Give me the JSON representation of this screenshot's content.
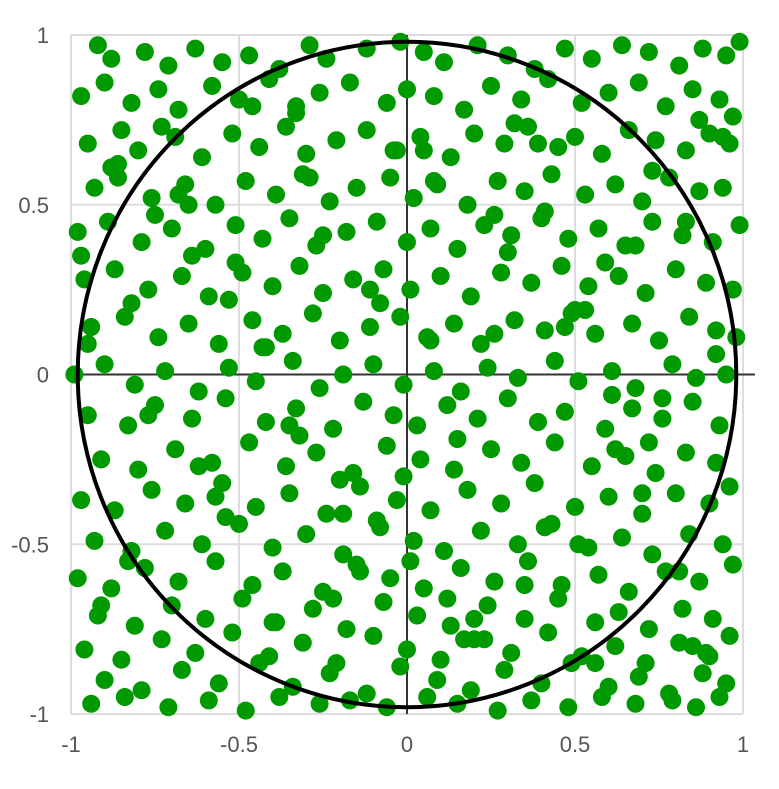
{
  "chart_data": {
    "type": "scatter",
    "title": "",
    "xlabel": "",
    "ylabel": "",
    "xlim": [
      -1,
      1
    ],
    "ylim": [
      -1,
      1
    ],
    "x_ticks": [
      -1,
      -0.5,
      0,
      0.5,
      1
    ],
    "y_ticks": [
      -1,
      -0.5,
      0,
      0.5,
      1
    ],
    "x_tick_labels": [
      "-1",
      "-0.5",
      "0",
      "0.5",
      "1"
    ],
    "y_tick_labels": [
      "-1",
      "-0.5",
      "0",
      "0.5",
      "1"
    ],
    "grid": true,
    "legend": "none",
    "point_color": "#009900",
    "gridline_color": "#dddddd",
    "axis_color": "#333333",
    "circle": {
      "cx": 0,
      "cy": 0,
      "r": 0.98,
      "color": "#000000"
    },
    "series": [
      {
        "x": [
          -0.92,
          -0.88,
          -0.78,
          -0.71,
          -0.63,
          -0.55,
          -0.47,
          -0.38,
          -0.29,
          -0.24,
          -0.12,
          -0.02,
          0.05,
          0.11,
          0.21,
          0.3,
          0.38,
          0.47,
          0.55,
          0.64,
          0.72,
          0.81,
          0.88,
          0.95,
          0.99,
          -0.97,
          -0.9,
          -0.82,
          -0.74,
          -0.68,
          -0.58,
          -0.5,
          -0.41,
          -0.33,
          -0.26,
          -0.17,
          -0.06,
          0.0,
          0.08,
          0.17,
          0.25,
          0.34,
          0.42,
          0.52,
          0.6,
          0.69,
          0.77,
          0.85,
          0.93,
          0.97,
          -0.95,
          -0.85,
          -0.8,
          -0.69,
          -0.61,
          -0.52,
          -0.44,
          -0.36,
          -0.3,
          -0.21,
          -0.12,
          -0.03,
          0.04,
          0.13,
          0.2,
          0.29,
          0.36,
          0.45,
          0.5,
          0.58,
          0.66,
          0.74,
          0.83,
          0.9,
          0.96,
          -0.93,
          -0.86,
          -0.76,
          -0.66,
          -0.57,
          -0.48,
          -0.39,
          -0.31,
          -0.23,
          -0.15,
          -0.05,
          0.02,
          0.09,
          0.18,
          0.27,
          0.35,
          0.43,
          0.53,
          0.62,
          0.7,
          0.78,
          0.87,
          0.94,
          -0.98,
          -0.89,
          -0.79,
          -0.7,
          -0.6,
          -0.51,
          -0.43,
          -0.35,
          -0.27,
          -0.18,
          -0.09,
          0.0,
          0.07,
          0.15,
          0.23,
          0.31,
          0.4,
          0.48,
          0.57,
          0.65,
          0.73,
          0.82,
          0.91,
          0.99,
          -0.96,
          -0.87,
          -0.77,
          -0.67,
          -0.59,
          -0.49,
          -0.4,
          -0.32,
          -0.25,
          -0.16,
          -0.07,
          0.01,
          0.1,
          0.19,
          0.28,
          0.37,
          0.46,
          0.54,
          0.63,
          0.71,
          0.8,
          0.89,
          0.97,
          -0.94,
          -0.84,
          -0.74,
          -0.65,
          -0.56,
          -0.46,
          -0.37,
          -0.28,
          -0.2,
          -0.11,
          -0.02,
          0.06,
          0.14,
          0.22,
          0.32,
          0.41,
          0.49,
          0.56,
          0.67,
          0.75,
          0.84,
          0.92,
          0.98,
          -0.99,
          -0.9,
          -0.81,
          -0.72,
          -0.62,
          -0.53,
          -0.45,
          -0.34,
          -0.26,
          -0.19,
          -0.1,
          -0.01,
          0.08,
          0.16,
          0.24,
          0.33,
          0.44,
          0.51,
          0.61,
          0.68,
          0.79,
          0.86,
          0.95,
          -0.95,
          -0.83,
          -0.75,
          -0.64,
          -0.54,
          -0.42,
          -0.33,
          -0.22,
          -0.13,
          -0.04,
          0.03,
          0.12,
          0.21,
          0.3,
          0.39,
          0.47,
          0.59,
          0.67,
          0.76,
          0.85,
          0.93,
          -0.91,
          -0.8,
          -0.69,
          -0.58,
          -0.47,
          -0.36,
          -0.27,
          -0.16,
          -0.06,
          0.04,
          0.14,
          0.25,
          0.34,
          0.44,
          0.55,
          0.65,
          0.74,
          0.83,
          0.92,
          -0.97,
          -0.87,
          -0.76,
          -0.66,
          -0.55,
          -0.45,
          -0.35,
          -0.24,
          -0.14,
          -0.03,
          0.07,
          0.18,
          0.28,
          0.38,
          0.5,
          0.6,
          0.7,
          0.8,
          0.9,
          -0.93,
          -0.82,
          -0.72,
          -0.61,
          -0.5,
          -0.4,
          -0.3,
          -0.19,
          -0.08,
          0.02,
          0.11,
          0.22,
          0.33,
          0.43,
          0.54,
          0.64,
          0.73,
          0.84,
          0.94,
          -0.98,
          -0.88,
          -0.78,
          -0.68,
          -0.57,
          -0.46,
          -0.37,
          -0.25,
          -0.15,
          -0.05,
          0.05,
          0.16,
          0.26,
          0.36,
          0.46,
          0.57,
          0.66,
          0.77,
          0.87,
          0.97,
          -0.92,
          -0.81,
          -0.7,
          -0.6,
          -0.49,
          -0.39,
          -0.28,
          -0.18,
          -0.07,
          0.03,
          0.13,
          0.24,
          0.35,
          0.45,
          0.56,
          0.63,
          0.72,
          0.82,
          0.91,
          -0.96,
          -0.85,
          -0.73,
          -0.63,
          -0.52,
          -0.41,
          -0.31,
          -0.21,
          -0.1,
          0.0,
          0.1,
          0.2,
          0.31,
          0.42,
          0.52,
          0.62,
          0.71,
          0.81,
          0.89,
          0.96,
          -0.9,
          -0.79,
          -0.67,
          -0.56,
          -0.44,
          -0.34,
          -0.23,
          -0.12,
          -0.02,
          0.09,
          0.19,
          0.29,
          0.4,
          0.49,
          0.6,
          0.69,
          0.78,
          0.88,
          0.95,
          -0.94,
          -0.84,
          -0.71,
          -0.59,
          -0.48,
          -0.38,
          -0.26,
          -0.17,
          -0.06,
          0.06,
          0.15,
          0.27,
          0.37,
          0.48,
          0.58,
          0.68,
          0.79,
          0.86,
          0.93,
          -0.88,
          -0.75,
          -0.64,
          -0.53,
          -0.42,
          -0.32,
          -0.2,
          -0.09,
          0.01,
          0.12,
          0.23,
          0.32,
          0.41,
          0.53,
          0.61,
          0.7,
          0.81,
          0.9,
          -0.97,
          -0.86,
          -0.77,
          -0.65,
          -0.54,
          -0.43,
          -0.33,
          -0.22,
          -0.11,
          -0.01,
          0.08,
          0.17,
          0.26,
          0.39,
          0.51,
          0.59,
          0.72,
          0.83,
          0.94,
          -0.91,
          -0.82,
          -0.68,
          -0.57,
          -0.46,
          -0.35,
          -0.25,
          -0.14,
          -0.04,
          0.07,
          0.2,
          0.3,
          0.41,
          0.5,
          0.62,
          0.73,
          0.85,
          0.92,
          -0.95,
          -0.83,
          -0.73,
          -0.62,
          -0.51,
          -0.4,
          -0.29,
          -0.19,
          -0.08,
          0.05,
          0.15,
          0.26,
          0.35,
          0.47,
          0.56,
          0.68,
          0.76,
          0.87,
          0.96
        ],
        "y": [
          0.97,
          0.93,
          0.95,
          0.91,
          0.96,
          0.92,
          0.94,
          0.9,
          0.97,
          0.93,
          0.96,
          0.98,
          0.95,
          0.92,
          0.97,
          0.94,
          0.9,
          0.96,
          0.93,
          0.97,
          0.95,
          0.91,
          0.96,
          0.94,
          0.98,
          0.82,
          0.86,
          0.8,
          0.84,
          0.78,
          0.85,
          0.81,
          0.87,
          0.79,
          0.83,
          0.86,
          0.8,
          0.84,
          0.82,
          0.78,
          0.85,
          0.81,
          0.87,
          0.8,
          0.83,
          0.86,
          0.79,
          0.84,
          0.81,
          0.76,
          0.68,
          0.72,
          0.66,
          0.7,
          0.64,
          0.71,
          0.67,
          0.73,
          0.65,
          0.69,
          0.72,
          0.66,
          0.7,
          0.64,
          0.71,
          0.68,
          0.73,
          0.67,
          0.7,
          0.65,
          0.72,
          0.69,
          0.66,
          0.71,
          0.68,
          0.55,
          0.58,
          0.52,
          0.56,
          0.5,
          0.57,
          0.53,
          0.59,
          0.51,
          0.55,
          0.58,
          0.52,
          0.56,
          0.5,
          0.57,
          0.54,
          0.59,
          0.53,
          0.56,
          0.51,
          0.58,
          0.54,
          0.55,
          0.42,
          0.45,
          0.39,
          0.43,
          0.37,
          0.44,
          0.4,
          0.46,
          0.38,
          0.42,
          0.45,
          0.39,
          0.43,
          0.37,
          0.44,
          0.41,
          0.46,
          0.4,
          0.43,
          0.38,
          0.45,
          0.41,
          0.39,
          0.44,
          0.28,
          0.31,
          0.25,
          0.29,
          0.23,
          0.3,
          0.26,
          0.32,
          0.24,
          0.28,
          0.31,
          0.25,
          0.29,
          0.23,
          0.3,
          0.27,
          0.32,
          0.26,
          0.29,
          0.24,
          0.31,
          0.27,
          0.25,
          0.14,
          0.17,
          0.11,
          0.15,
          0.09,
          0.16,
          0.12,
          0.18,
          0.1,
          0.14,
          0.17,
          0.11,
          0.15,
          0.09,
          0.16,
          0.13,
          0.18,
          0.12,
          0.15,
          0.1,
          0.17,
          0.13,
          0.11,
          0.0,
          0.03,
          -0.03,
          0.01,
          -0.05,
          0.02,
          -0.02,
          0.04,
          -0.04,
          0.0,
          0.03,
          -0.03,
          0.01,
          -0.05,
          0.02,
          -0.01,
          0.04,
          -0.02,
          0.01,
          -0.04,
          0.03,
          -0.01,
          0.0,
          -0.12,
          -0.15,
          -0.09,
          -0.13,
          -0.07,
          -0.14,
          -0.1,
          -0.16,
          -0.08,
          -0.12,
          -0.15,
          -0.09,
          -0.13,
          -0.07,
          -0.14,
          -0.11,
          -0.16,
          -0.1,
          -0.13,
          -0.08,
          -0.15,
          -0.25,
          -0.28,
          -0.22,
          -0.26,
          -0.2,
          -0.27,
          -0.23,
          -0.29,
          -0.21,
          -0.25,
          -0.28,
          -0.22,
          -0.26,
          -0.2,
          -0.27,
          -0.24,
          -0.29,
          -0.23,
          -0.26,
          -0.37,
          -0.4,
          -0.34,
          -0.38,
          -0.32,
          -0.39,
          -0.35,
          -0.41,
          -0.33,
          -0.37,
          -0.4,
          -0.34,
          -0.38,
          -0.32,
          -0.39,
          -0.36,
          -0.41,
          -0.35,
          -0.38,
          -0.49,
          -0.52,
          -0.46,
          -0.5,
          -0.44,
          -0.51,
          -0.47,
          -0.53,
          -0.45,
          -0.49,
          -0.52,
          -0.46,
          -0.5,
          -0.44,
          -0.51,
          -0.48,
          -0.53,
          -0.47,
          -0.5,
          -0.6,
          -0.63,
          -0.57,
          -0.61,
          -0.55,
          -0.62,
          -0.58,
          -0.64,
          -0.56,
          -0.6,
          -0.63,
          -0.57,
          -0.61,
          -0.55,
          -0.62,
          -0.59,
          -0.64,
          -0.58,
          -0.61,
          -0.56,
          -0.71,
          -0.74,
          -0.68,
          -0.72,
          -0.66,
          -0.73,
          -0.69,
          -0.75,
          -0.67,
          -0.71,
          -0.74,
          -0.68,
          -0.72,
          -0.66,
          -0.73,
          -0.7,
          -0.75,
          -0.69,
          -0.72,
          -0.81,
          -0.84,
          -0.78,
          -0.82,
          -0.76,
          -0.83,
          -0.79,
          -0.85,
          -0.77,
          -0.81,
          -0.84,
          -0.78,
          -0.82,
          -0.76,
          -0.83,
          -0.8,
          -0.85,
          -0.79,
          -0.82,
          -0.77,
          -0.9,
          -0.93,
          -0.87,
          -0.91,
          -0.85,
          -0.92,
          -0.88,
          -0.94,
          -0.86,
          -0.9,
          -0.93,
          -0.87,
          -0.91,
          -0.85,
          -0.92,
          -0.89,
          -0.94,
          -0.88,
          -0.91,
          -0.97,
          -0.95,
          -0.98,
          -0.96,
          -0.99,
          -0.95,
          -0.97,
          -0.96,
          -0.98,
          -0.95,
          -0.97,
          -0.99,
          -0.96,
          -0.98,
          -0.95,
          -0.97,
          -0.96,
          -0.98,
          -0.95,
          0.61,
          0.47,
          0.35,
          0.22,
          0.08,
          -0.18,
          -0.31,
          -0.43,
          -0.55,
          -0.66,
          -0.78,
          0.74,
          0.48,
          0.19,
          -0.06,
          -0.35,
          -0.58,
          -0.83,
          0.35,
          0.62,
          -0.12,
          0.5,
          -0.42,
          0.08,
          0.77,
          -0.66,
          0.25,
          -0.3,
          0.57,
          -0.78,
          0.12,
          0.68,
          -0.5,
          0.33,
          -0.2,
          0.45,
          0.7,
          -0.68,
          0.21,
          0.53,
          -0.36,
          0.79,
          -0.15,
          0.41,
          -0.58,
          0.66,
          0.1,
          -0.72,
          0.36,
          -0.45,
          0.19,
          -0.22,
          0.6,
          -0.8,
          0.06,
          0.09,
          -0.55,
          0.73,
          -0.27,
          0.33,
          -0.73,
          0.58,
          -0.41,
          0.21,
          0.66,
          -0.19,
          0.47,
          -0.62,
          0.14,
          -0.85,
          0.38,
          -0.07,
          0.75,
          -0.33
        ]
      }
    ]
  }
}
